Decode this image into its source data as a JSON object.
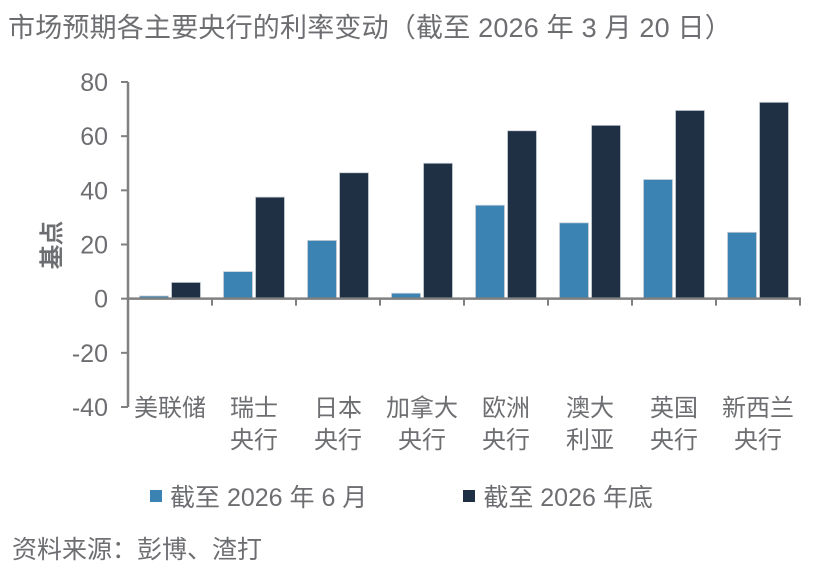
{
  "chart_data": {
    "type": "bar",
    "title": "市场预期各主要央行的利率变动（截至 2026 年 3 月 20 日）",
    "xlabel": "",
    "ylabel": "基点",
    "ylim": [
      -40,
      80
    ],
    "yticks": [
      80,
      60,
      40,
      20,
      0,
      -20,
      -40
    ],
    "grid": false,
    "legend_position": "bottom",
    "categories": [
      [
        "美联储"
      ],
      [
        "瑞士",
        "央行"
      ],
      [
        "日本",
        "央行"
      ],
      [
        "加拿大",
        "央行"
      ],
      [
        "欧洲",
        "央行"
      ],
      [
        "澳大",
        "利亚"
      ],
      [
        "英国",
        "央行"
      ],
      [
        "新西兰",
        "央行"
      ]
    ],
    "series": [
      {
        "name": "截至 2026 年 6 月",
        "color": "#3a83b2",
        "values": [
          1,
          10,
          21.5,
          2,
          34.5,
          28,
          44,
          24.5
        ]
      },
      {
        "name": "截至 2026 年底",
        "color": "#1f3044",
        "values": [
          6,
          37.5,
          46.5,
          50,
          62,
          64,
          69.5,
          72.5
        ]
      }
    ],
    "source": "资料来源：彭博、渣打"
  }
}
